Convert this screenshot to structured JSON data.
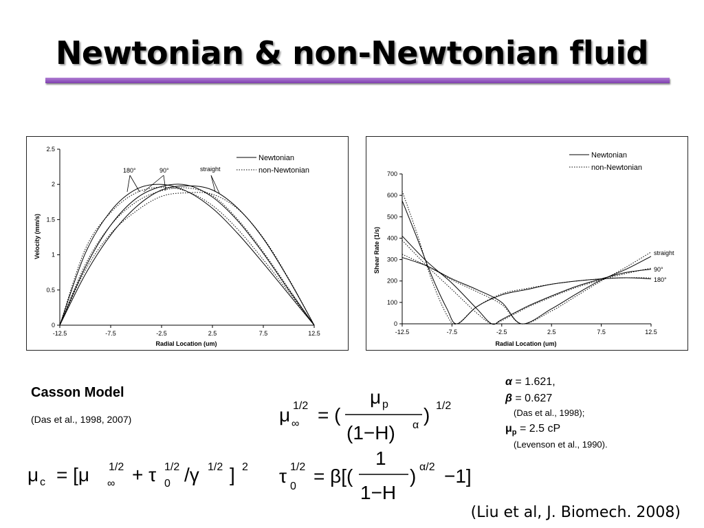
{
  "slide": {
    "title": "Newtonian & non-Newtonian fluid",
    "footer_citation": "(Liu et al, J. Biomech. 2008)"
  },
  "chart_data": [
    {
      "type": "line",
      "xlabel": "Radial Location (um)",
      "ylabel": "Velocity (mm/s)",
      "xlim": [
        -12.5,
        12.5
      ],
      "ylim": [
        0,
        2.5
      ],
      "x_ticks": [
        "-12.5",
        "-7.5",
        "-2.5",
        "2.5",
        "7.5",
        "12.5"
      ],
      "y_ticks": [
        "0",
        "0.5",
        "1",
        "1.5",
        "2",
        "2.5"
      ],
      "legend": {
        "placement": "top-right",
        "entries": [
          "Newtonian",
          "non-Newtonian"
        ]
      },
      "annotations": [
        "180°",
        "90°",
        "straight"
      ],
      "series": [
        {
          "legend": "Newtonian",
          "case": "180°",
          "style": "solid",
          "x": [
            -12.5,
            -10,
            -7.5,
            -5,
            -2.5,
            0,
            2.5,
            5,
            7.5,
            10,
            12.5
          ],
          "y": [
            0,
            1.02,
            1.62,
            1.93,
            2.0,
            1.9,
            1.66,
            1.3,
            0.88,
            0.44,
            0
          ]
        },
        {
          "legend": "non-Newtonian",
          "case": "180°",
          "style": "dotted",
          "x": [
            -12.5,
            -10,
            -7.5,
            -5,
            -2.5,
            0,
            2.5,
            5,
            7.5,
            10,
            12.5
          ],
          "y": [
            0,
            1.08,
            1.6,
            1.88,
            1.96,
            1.9,
            1.7,
            1.36,
            0.93,
            0.47,
            0
          ]
        },
        {
          "legend": "Newtonian",
          "case": "90°",
          "style": "solid",
          "x": [
            -12.5,
            -10,
            -7.5,
            -5,
            -2.5,
            0,
            2.5,
            5,
            7.5,
            10,
            12.5
          ],
          "y": [
            0,
            0.82,
            1.42,
            1.8,
            1.97,
            1.99,
            1.82,
            1.48,
            1.02,
            0.5,
            0
          ]
        },
        {
          "legend": "non-Newtonian",
          "case": "90°",
          "style": "dotted",
          "x": [
            -12.5,
            -10,
            -7.5,
            -5,
            -2.5,
            0,
            2.5,
            5,
            7.5,
            10,
            12.5
          ],
          "y": [
            0,
            0.86,
            1.42,
            1.75,
            1.91,
            1.95,
            1.84,
            1.5,
            1.04,
            0.52,
            0
          ]
        },
        {
          "legend": "Newtonian",
          "case": "straight",
          "style": "solid",
          "x": [
            -12.5,
            -10,
            -7.5,
            -5,
            -2.5,
            0,
            2.5,
            5,
            7.5,
            10,
            12.5
          ],
          "y": [
            0,
            0.72,
            1.28,
            1.68,
            1.92,
            1.98,
            1.92,
            1.66,
            1.23,
            0.65,
            0
          ]
        },
        {
          "legend": "non-Newtonian",
          "case": "straight",
          "style": "dotted",
          "x": [
            -12.5,
            -10,
            -7.5,
            -5,
            -2.5,
            0,
            2.5,
            5,
            7.5,
            10,
            12.5
          ],
          "y": [
            0,
            0.78,
            1.3,
            1.62,
            1.83,
            1.88,
            1.86,
            1.65,
            1.24,
            0.66,
            0
          ]
        }
      ]
    },
    {
      "type": "line",
      "xlabel": "Radial Location (um)",
      "ylabel": "Shear Rate (1/s)",
      "xlim": [
        -12.5,
        12.5
      ],
      "ylim": [
        0,
        700
      ],
      "x_ticks": [
        "-12.5",
        "-7.5",
        "-2.5",
        "2.5",
        "7.5",
        "12.5"
      ],
      "y_ticks": [
        "0",
        "100",
        "200",
        "300",
        "400",
        "500",
        "600",
        "700"
      ],
      "legend": {
        "placement": "top-right",
        "entries": [
          "Newtonian",
          "non-Newtonian"
        ]
      },
      "annotations": [
        "straight",
        "90°",
        "180°"
      ],
      "series": [
        {
          "legend": "Newtonian",
          "case": "180°",
          "style": "solid",
          "x": [
            -12.5,
            -11,
            -9.5,
            -8,
            -7,
            -5,
            -2.5,
            0,
            2.5,
            5,
            7.5,
            10,
            12.5
          ],
          "y": [
            575,
            400,
            220,
            70,
            0,
            80,
            135,
            160,
            185,
            200,
            210,
            215,
            210
          ]
        },
        {
          "legend": "non-Newtonian",
          "case": "180°",
          "style": "dotted",
          "x": [
            -12.5,
            -11,
            -9.5,
            -8,
            -7,
            -5,
            -2.5,
            0,
            2.5,
            5,
            7.5,
            10,
            12.5
          ],
          "y": [
            620,
            420,
            200,
            40,
            0,
            80,
            140,
            165,
            185,
            200,
            210,
            215,
            215
          ]
        },
        {
          "legend": "Newtonian",
          "case": "90°",
          "style": "solid",
          "x": [
            -12.5,
            -10,
            -7.5,
            -5,
            -3.5,
            -2.5,
            0,
            2.5,
            5,
            7.5,
            10,
            12.5
          ],
          "y": [
            410,
            290,
            190,
            70,
            0,
            20,
            80,
            130,
            175,
            210,
            240,
            255
          ]
        },
        {
          "legend": "non-Newtonian",
          "case": "90°",
          "style": "dotted",
          "x": [
            -12.5,
            -10,
            -7.5,
            -5,
            -3.5,
            -2.5,
            0,
            2.5,
            5,
            7.5,
            10,
            12.5
          ],
          "y": [
            390,
            270,
            160,
            50,
            0,
            15,
            75,
            125,
            170,
            205,
            235,
            260
          ]
        },
        {
          "legend": "Newtonian",
          "case": "straight",
          "style": "solid",
          "x": [
            -12.5,
            -10,
            -7.5,
            -5,
            -2.5,
            -0.5,
            2.5,
            5,
            7.5,
            10,
            12.5
          ],
          "y": [
            310,
            270,
            210,
            160,
            100,
            0,
            70,
            140,
            205,
            255,
            315
          ]
        },
        {
          "legend": "non-Newtonian",
          "case": "straight",
          "style": "dotted",
          "x": [
            -12.5,
            -10,
            -7.5,
            -5,
            -2.5,
            -0.5,
            2.5,
            5,
            7.5,
            10,
            12.5
          ],
          "y": [
            325,
            270,
            205,
            150,
            90,
            0,
            60,
            130,
            200,
            265,
            335
          ]
        }
      ]
    }
  ],
  "casson": {
    "title": "Casson Model",
    "citation": "(Das et al., 1998, 2007)"
  },
  "params": {
    "alpha_label": "α",
    "alpha_value": " = 1.621,",
    "beta_label": "β",
    "beta_value": " = 0.627",
    "beta_citation": "(Das et al., 1998);",
    "mu_label": "μ",
    "mu_sub": "p",
    "mu_value": " = 2.5 cP",
    "mu_citation": "(Levenson et al., 1990)."
  }
}
